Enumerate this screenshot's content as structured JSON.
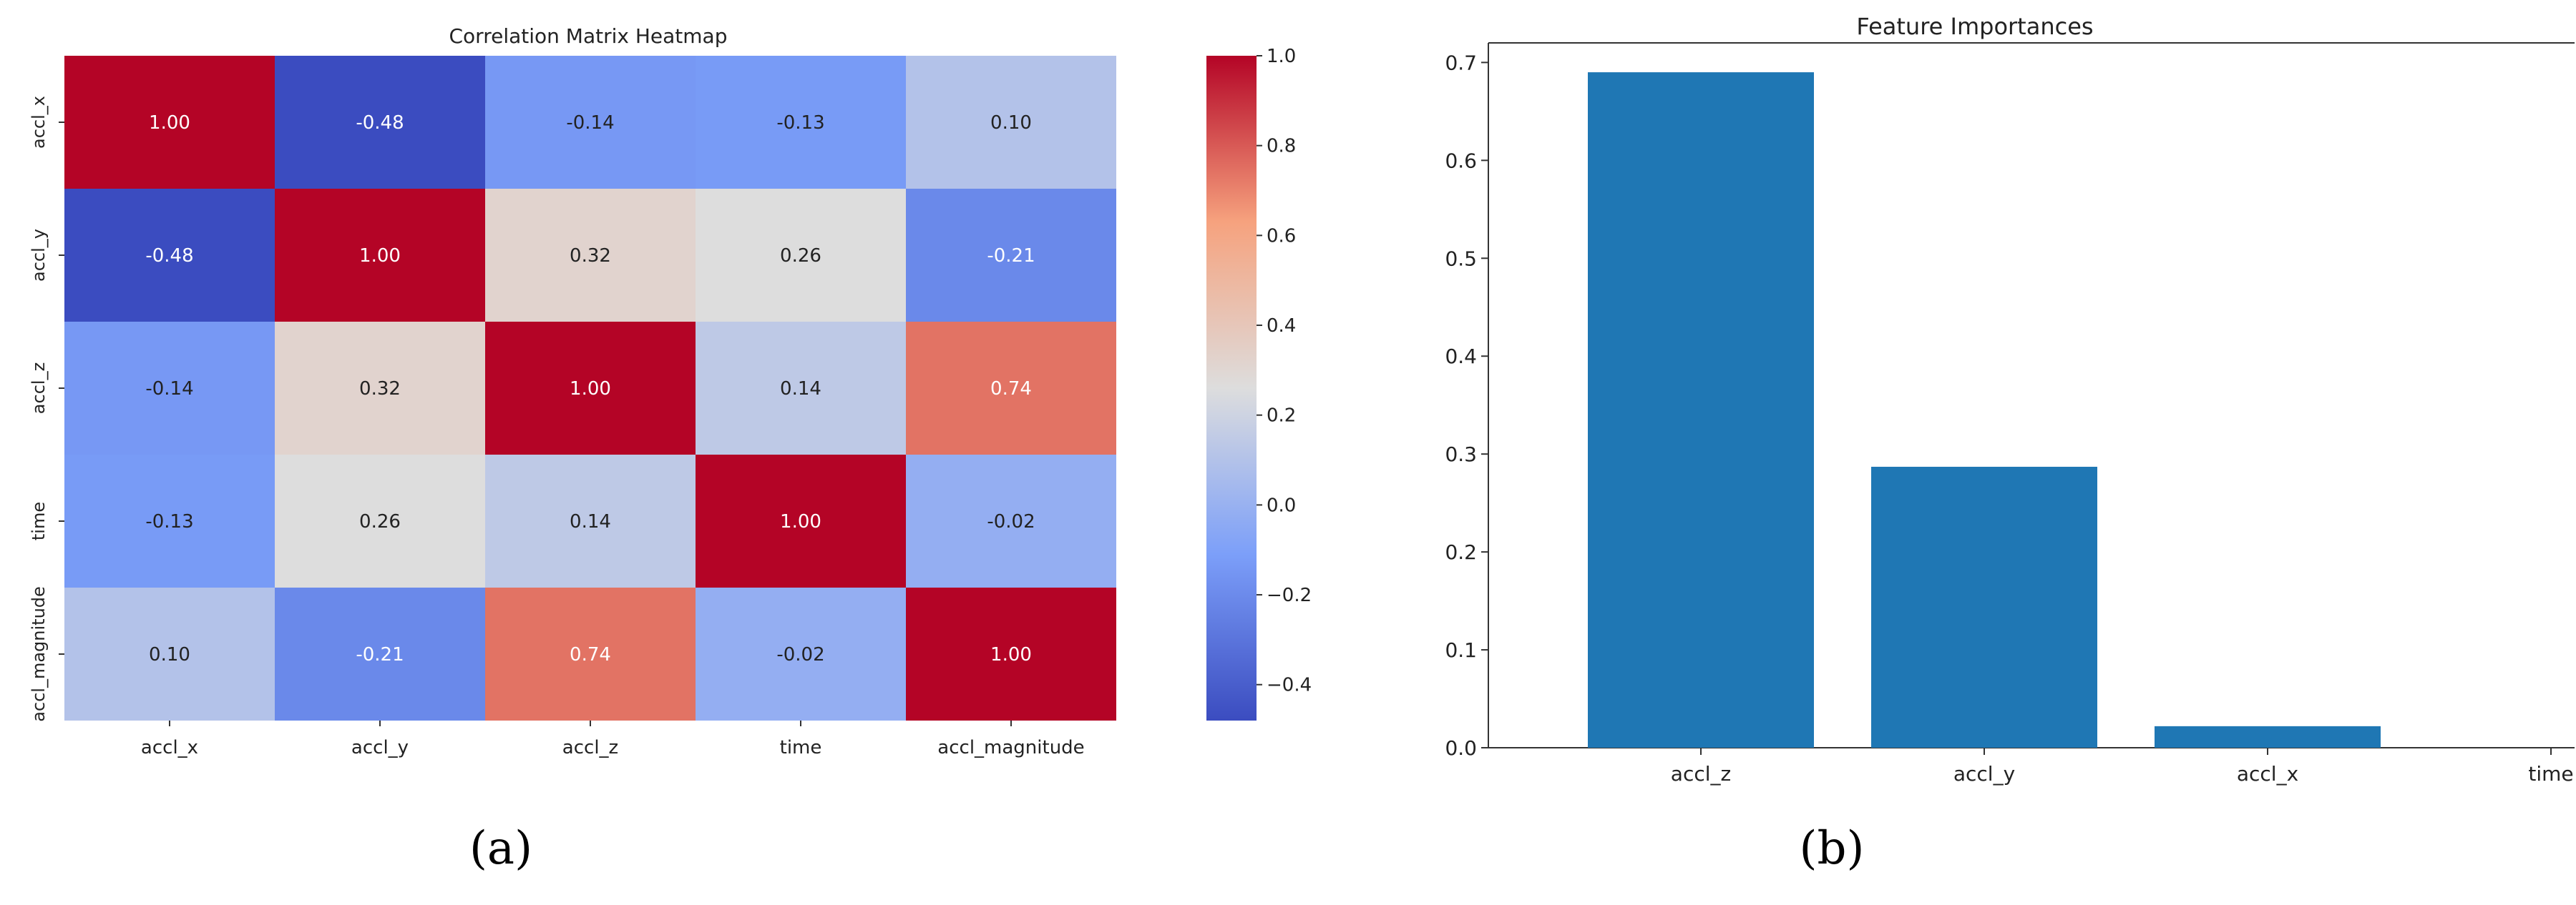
{
  "panels": {
    "a": {
      "caption": "(a)"
    },
    "b": {
      "caption": "(b)"
    }
  },
  "chart_data": [
    {
      "type": "heatmap",
      "title": "Correlation Matrix Heatmap",
      "row_labels": [
        "accl_x",
        "accl_y",
        "accl_z",
        "time",
        "accl_magnitude"
      ],
      "col_labels": [
        "accl_x",
        "accl_y",
        "accl_z",
        "time",
        "accl_magnitude"
      ],
      "values": [
        [
          1.0,
          -0.48,
          -0.14,
          -0.13,
          0.1
        ],
        [
          -0.48,
          1.0,
          0.32,
          0.26,
          -0.21
        ],
        [
          -0.14,
          0.32,
          1.0,
          0.14,
          0.74
        ],
        [
          -0.13,
          0.26,
          0.14,
          1.0,
          -0.02
        ],
        [
          0.1,
          -0.21,
          0.74,
          -0.02,
          1.0
        ]
      ],
      "cell_labels": [
        [
          "1.00",
          "-0.48",
          "-0.14",
          "-0.13",
          "0.10"
        ],
        [
          "-0.48",
          "1.00",
          "0.32",
          "0.26",
          "-0.21"
        ],
        [
          "-0.14",
          "0.32",
          "1.00",
          "0.14",
          "0.74"
        ],
        [
          "-0.13",
          "0.26",
          "0.14",
          "1.00",
          "-0.02"
        ],
        [
          "0.10",
          "-0.21",
          "0.74",
          "-0.02",
          "1.00"
        ]
      ],
      "colormap": "coolwarm",
      "colorbar": {
        "range": [
          -0.48,
          1.0
        ],
        "ticks": [
          1.0,
          0.8,
          0.6,
          0.4,
          0.2,
          0.0,
          -0.2,
          -0.4
        ],
        "tick_labels": [
          "1.0",
          "0.8",
          "0.6",
          "0.4",
          "0.2",
          "0.0",
          "−0.2",
          "−0.4"
        ]
      },
      "grid": false
    },
    {
      "type": "bar",
      "title": "Feature Importances",
      "categories": [
        "accl_z",
        "accl_y",
        "accl_x",
        "time"
      ],
      "values": [
        0.69,
        0.287,
        0.022,
        0.0
      ],
      "ylim": [
        0,
        0.72
      ],
      "yticks": [
        0.0,
        0.1,
        0.2,
        0.3,
        0.4,
        0.5,
        0.6,
        0.7
      ],
      "ytick_labels": [
        "0.0",
        "0.1",
        "0.2",
        "0.3",
        "0.4",
        "0.5",
        "0.6",
        "0.7"
      ],
      "bar_color": "#1f77b4",
      "xlabel": "",
      "ylabel": "",
      "grid": false
    }
  ]
}
